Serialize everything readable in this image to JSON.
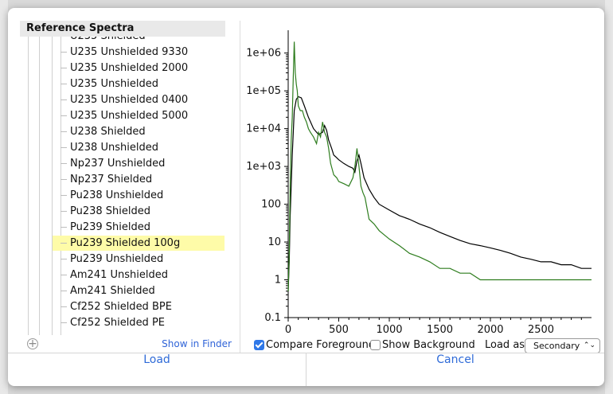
{
  "dialog": {
    "tree": {
      "header": "Reference Spectra",
      "items": [
        {
          "label": "U235 Shielded",
          "selected": false
        },
        {
          "label": "U235 Unshielded 9330",
          "selected": false
        },
        {
          "label": "U235 Unshielded 2000",
          "selected": false
        },
        {
          "label": "U235 Unshielded",
          "selected": false
        },
        {
          "label": "U235 Unshielded 0400",
          "selected": false
        },
        {
          "label": "U235 Unshielded 5000",
          "selected": false
        },
        {
          "label": "U238 Shielded",
          "selected": false
        },
        {
          "label": "U238 Unshielded",
          "selected": false
        },
        {
          "label": "Np237 Unshielded",
          "selected": false
        },
        {
          "label": "Np237 Shielded",
          "selected": false
        },
        {
          "label": "Pu238 Unshielded",
          "selected": false
        },
        {
          "label": "Pu238 Shielded",
          "selected": false
        },
        {
          "label": "Pu239 Shielded",
          "selected": false
        },
        {
          "label": "Pu239 Shielded 100g",
          "selected": true
        },
        {
          "label": "Pu239 Unshielded",
          "selected": false
        },
        {
          "label": "Am241 Unshielded",
          "selected": false
        },
        {
          "label": "Am241 Shielded",
          "selected": false
        },
        {
          "label": "Cf252 Shielded BPE",
          "selected": false
        },
        {
          "label": "Cf252 Shielded PE",
          "selected": false
        }
      ],
      "add_icon": "plus-circle-icon",
      "show_in_finder": "Show in Finder"
    },
    "controls": {
      "compare_foreground_label": "Compare Foreground",
      "compare_foreground_checked": true,
      "show_background_label": "Show Background",
      "show_background_checked": false,
      "load_as_label": "Load as",
      "load_as_value": "Secondary"
    },
    "buttons": {
      "load": "Load",
      "cancel": "Cancel"
    },
    "colors": {
      "selected_row": "#fefba8",
      "foreground_series": "#2e7d1e",
      "reference_series": "#000000",
      "link": "#3064d8"
    }
  },
  "chart_data": {
    "type": "line",
    "yscale": "log",
    "xlim": [
      0,
      3000
    ],
    "ylim": [
      0.1,
      3000000
    ],
    "x_ticks": [
      0,
      500,
      1000,
      1500,
      2000,
      2500
    ],
    "y_ticks": [
      "0.1",
      "1",
      "10",
      "100",
      "1e+03",
      "1e+04",
      "1e+05",
      "1e+06"
    ],
    "series": [
      {
        "color": "#000000",
        "x": [
          0,
          10,
          20,
          40,
          60,
          80,
          100,
          130,
          160,
          200,
          250,
          300,
          340,
          360,
          380,
          400,
          430,
          450,
          470,
          500,
          550,
          600,
          640,
          660,
          680,
          700,
          720,
          750,
          800,
          850,
          900,
          1000,
          1100,
          1200,
          1300,
          1400,
          1500,
          1600,
          1700,
          1800,
          1900,
          2000,
          2100,
          2200,
          2300,
          2400,
          2500,
          2600,
          2700,
          2800,
          2900,
          3000
        ],
        "y": [
          0.5,
          3,
          50,
          2000,
          30000,
          60000,
          70000,
          65000,
          40000,
          20000,
          10000,
          7000,
          8000,
          12000,
          9000,
          5000,
          3000,
          2000,
          1800,
          1500,
          1200,
          1000,
          900,
          700,
          1400,
          2000,
          1200,
          500,
          250,
          150,
          100,
          70,
          50,
          40,
          30,
          24,
          18,
          14,
          11,
          9,
          8,
          7,
          6,
          5,
          4,
          3.5,
          3,
          3,
          2.5,
          2.5,
          2,
          2
        ]
      },
      {
        "color": "#2e7d1e",
        "x": [
          0,
          10,
          20,
          30,
          40,
          50,
          60,
          70,
          80,
          90,
          100,
          120,
          140,
          160,
          180,
          200,
          220,
          250,
          280,
          300,
          320,
          340,
          360,
          380,
          400,
          420,
          450,
          480,
          500,
          550,
          600,
          640,
          660,
          680,
          700,
          720,
          740,
          760,
          800,
          850,
          900,
          1000,
          1100,
          1200,
          1300,
          1400,
          1500,
          1600,
          1700,
          1800,
          1900,
          2000,
          2100,
          2200,
          2300,
          2400,
          2500,
          2600,
          2700,
          2800,
          2900,
          3000
        ],
        "y": [
          0.5,
          5,
          300,
          5000,
          20000,
          200000,
          2000000,
          300000,
          150000,
          100000,
          40000,
          30000,
          30000,
          20000,
          15000,
          10000,
          8000,
          6000,
          4000,
          8000,
          6000,
          15000,
          8000,
          6000,
          3000,
          1200,
          600,
          500,
          400,
          350,
          300,
          500,
          1000,
          3000,
          1000,
          300,
          200,
          150,
          40,
          30,
          20,
          12,
          8,
          5,
          4,
          3,
          2,
          2,
          1.5,
          1.5,
          1,
          1,
          1,
          1,
          1,
          1,
          1,
          1,
          1,
          1,
          1,
          1
        ]
      }
    ]
  }
}
